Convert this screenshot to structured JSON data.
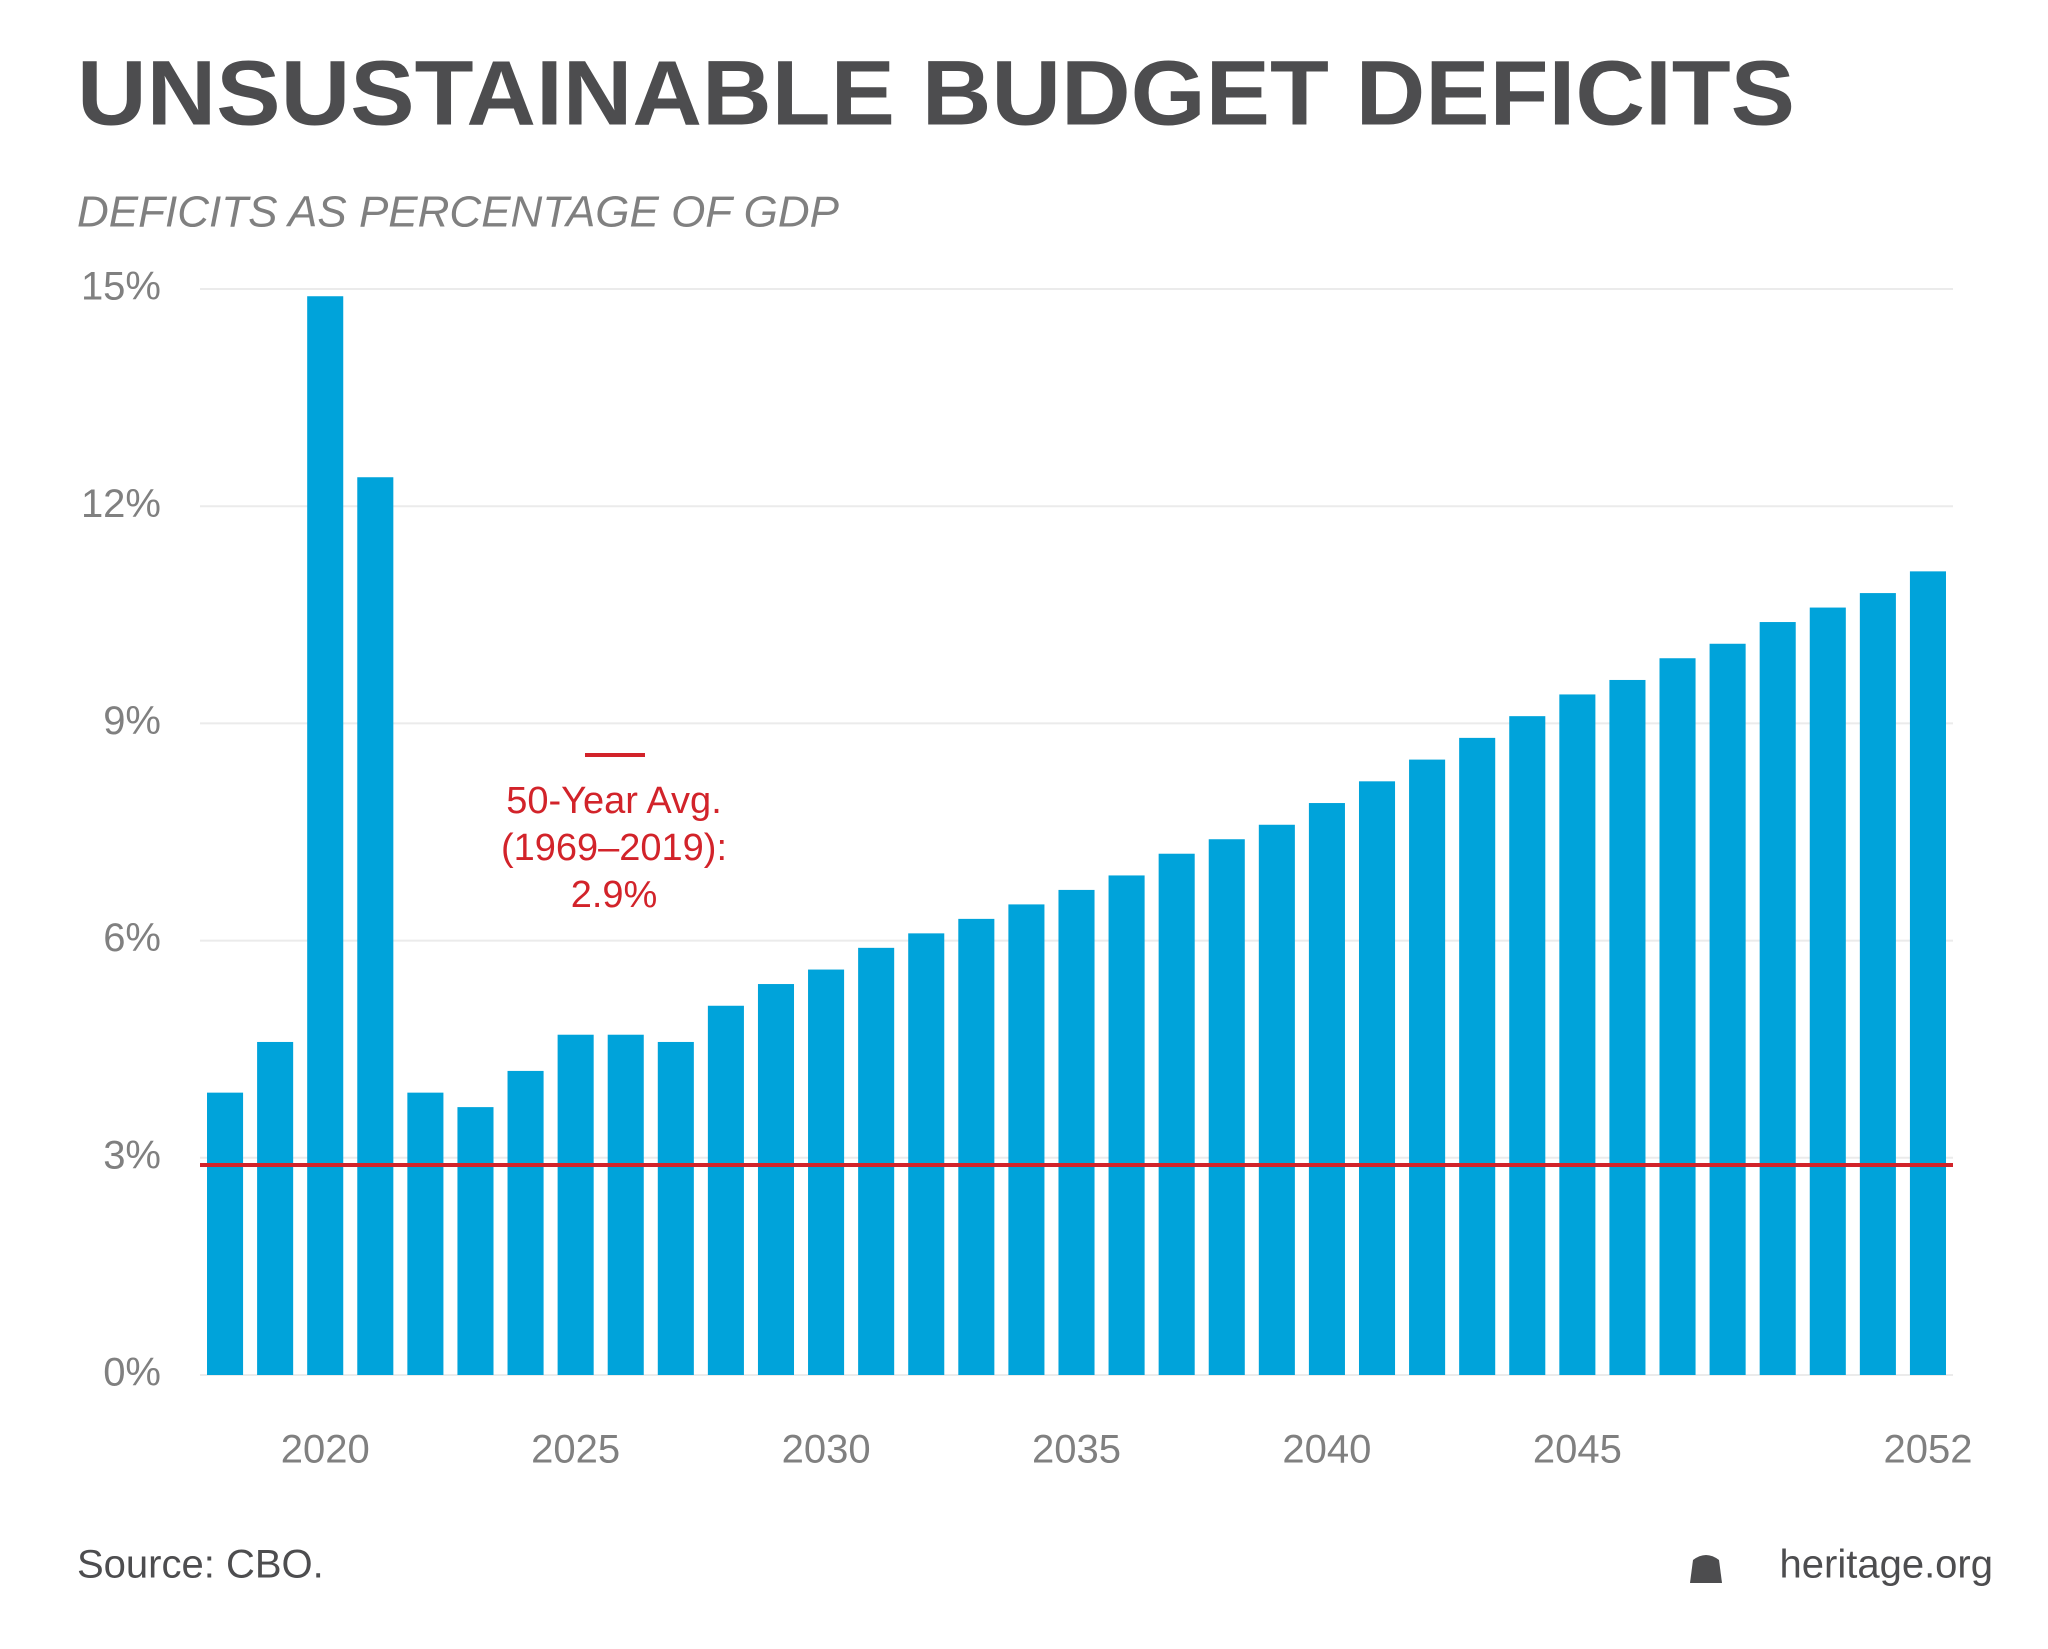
{
  "chart_data": {
    "type": "bar",
    "title": "UNSUSTAINABLE BUDGET DEFICITS",
    "subtitle": "DEFICITS AS PERCENTAGE OF GDP",
    "categories": [
      null,
      null,
      "2020",
      null,
      null,
      null,
      null,
      "2025",
      null,
      null,
      null,
      null,
      "2030",
      null,
      null,
      null,
      null,
      "2035",
      null,
      null,
      null,
      null,
      "2040",
      null,
      null,
      null,
      null,
      "2045",
      null,
      null,
      null,
      null,
      null,
      null,
      "2052"
    ],
    "values": [
      3.9,
      4.6,
      14.9,
      12.4,
      3.9,
      3.7,
      4.2,
      4.7,
      4.7,
      4.6,
      5.1,
      5.4,
      5.6,
      5.9,
      6.1,
      6.3,
      6.5,
      6.7,
      6.9,
      7.2,
      7.4,
      7.6,
      7.9,
      8.2,
      8.5,
      8.8,
      9.1,
      9.4,
      9.6,
      9.9,
      10.1,
      10.4,
      10.6,
      10.8,
      11.1
    ],
    "color": "#00a3da",
    "ylim": [
      0,
      15
    ],
    "yticks": [
      {
        "value": 0,
        "label": "0%"
      },
      {
        "value": 3,
        "label": "3%"
      },
      {
        "value": 6,
        "label": "6%"
      },
      {
        "value": 9,
        "label": "9%"
      },
      {
        "value": 12,
        "label": "12%"
      },
      {
        "value": 15,
        "label": "15%"
      }
    ],
    "grid": true,
    "reference_line": {
      "value": 2.9,
      "color": "#d2232a",
      "label_lines": [
        "50-Year Avg.",
        "(1969–2019):",
        "2.9%"
      ]
    },
    "source": "Source: CBO.",
    "brand": "heritage.org"
  }
}
